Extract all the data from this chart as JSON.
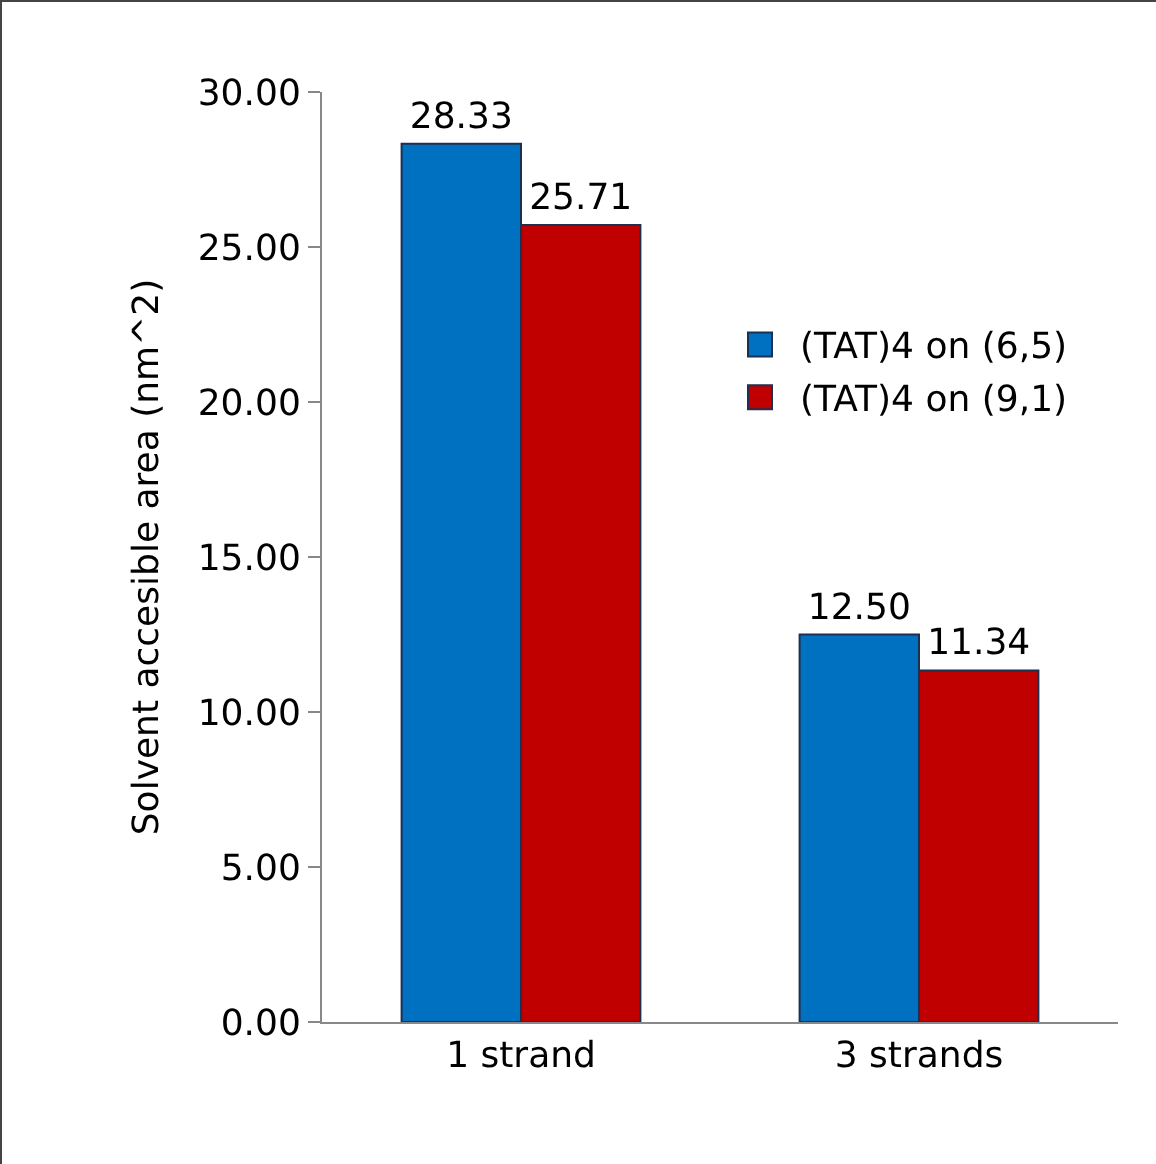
{
  "chart_data": {
    "type": "bar",
    "ylabel": "Solvent accesible area (nm^2)",
    "categories": [
      "1 strand",
      "3 strands"
    ],
    "series": [
      {
        "name": "(TAT)4 on (6,5)",
        "color": "#0070c0",
        "values": [
          28.33,
          12.5
        ],
        "value_labels": [
          "28.33",
          "12.50"
        ]
      },
      {
        "name": "(TAT)4 on (9,1)",
        "color": "#c00000",
        "values": [
          25.71,
          11.34
        ],
        "value_labels": [
          "25.71",
          "11.34"
        ]
      }
    ],
    "ylim": [
      0,
      30
    ],
    "yticks": [
      {
        "value": 0,
        "label": "0.00"
      },
      {
        "value": 5,
        "label": "5.00"
      },
      {
        "value": 10,
        "label": "10.00"
      },
      {
        "value": 15,
        "label": "15.00"
      },
      {
        "value": 20,
        "label": "20.00"
      },
      {
        "value": 25,
        "label": "25.00"
      },
      {
        "value": 30,
        "label": "30.00"
      }
    ],
    "grid": false,
    "legend": "right"
  }
}
